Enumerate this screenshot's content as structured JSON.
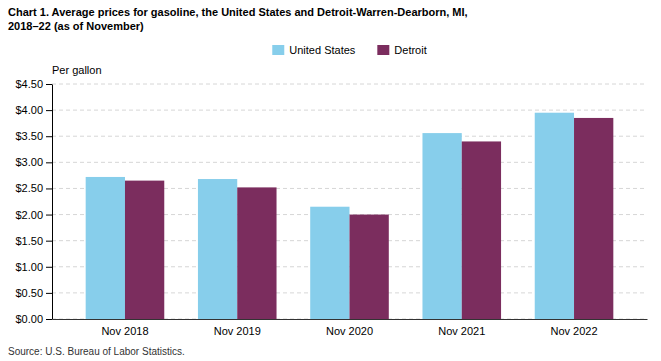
{
  "chart_data": {
    "type": "bar",
    "title": "Chart 1. Average prices for gasoline, the United States and Detroit-Warren-Dearborn, MI,",
    "subtitle": "2018–22 (as of November)",
    "ylabel": "Per gallon",
    "annotations": [
      "Source: U.S. Bureau of Labor Statistics."
    ],
    "categories": [
      "Nov 2018",
      "Nov 2019",
      "Nov 2020",
      "Nov 2021",
      "Nov 2022"
    ],
    "series": [
      {
        "name": "United States",
        "color": "#87CEEB",
        "values": [
          2.72,
          2.68,
          2.15,
          3.56,
          3.95
        ]
      },
      {
        "name": "Detroit",
        "color": "#7B2D5E",
        "values": [
          2.65,
          2.52,
          2.0,
          3.4,
          3.85
        ]
      }
    ],
    "ylim": [
      0,
      4.5
    ],
    "yticks": [
      {
        "value": 0.0,
        "label": "$0.00"
      },
      {
        "value": 0.5,
        "label": "$0.50"
      },
      {
        "value": 1.0,
        "label": "$1.00"
      },
      {
        "value": 1.5,
        "label": "$1.50"
      },
      {
        "value": 2.0,
        "label": "$2.00"
      },
      {
        "value": 2.5,
        "label": "$2.50"
      },
      {
        "value": 3.0,
        "label": "$3.00"
      },
      {
        "value": 3.5,
        "label": "$3.50"
      },
      {
        "value": 4.0,
        "label": "$4.00"
      },
      {
        "value": 4.5,
        "label": "$4.50"
      }
    ],
    "grid": true,
    "legend": "top"
  }
}
